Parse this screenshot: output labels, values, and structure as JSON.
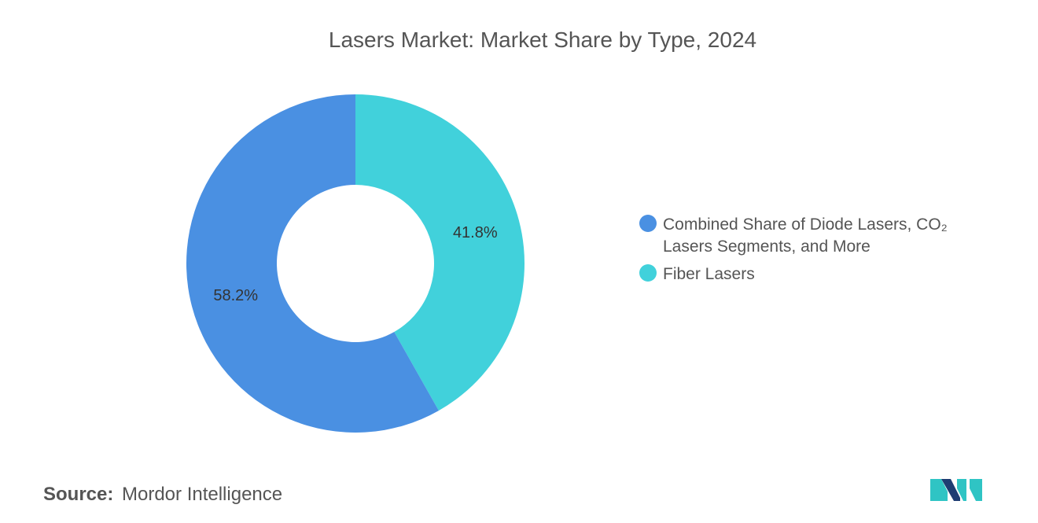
{
  "chart_data": {
    "type": "pie",
    "title": "Lasers Market: Market Share by Type, 2024",
    "categories": [
      "Combined Share of Diode Lasers, CO₂ Lasers Segments, and More",
      "Fiber Lasers"
    ],
    "values": [
      58.2,
      41.8
    ],
    "value_labels": [
      "58.2%",
      "41.8%"
    ],
    "colors": [
      "#4a90e2",
      "#41d1db"
    ],
    "legend": {
      "placement": "right",
      "entries": [
        {
          "lines": [
            "Combined Share of Diode Lasers, CO₂",
            "Lasers Segments, and More"
          ],
          "color": "#4a90e2"
        },
        {
          "lines": [
            "Fiber Lasers"
          ],
          "color": "#41d1db"
        }
      ]
    },
    "donut": true
  },
  "footer": {
    "source_label": "Source:",
    "source_value": "Mordor Intelligence"
  },
  "logo": {
    "icon": "mordor-intelligence-logo-icon",
    "colors": [
      "#1e3c72",
      "#2fc4c4"
    ]
  }
}
